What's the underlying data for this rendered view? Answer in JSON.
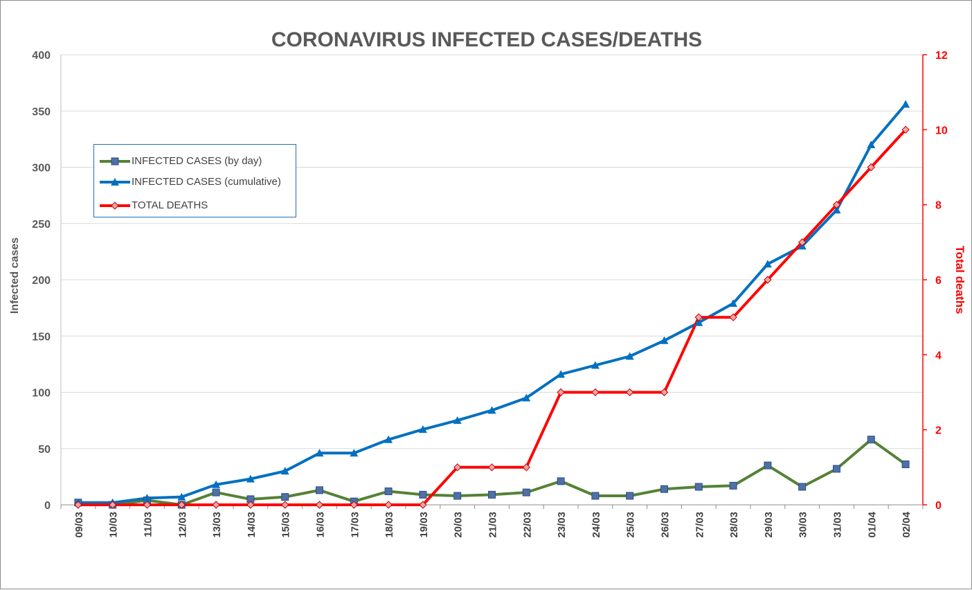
{
  "chart_data": {
    "type": "line",
    "title": "CORONAVIRUS INFECTED CASES/DEATHS",
    "ylabel": "Infected cases",
    "y2label": "Total deaths",
    "categories": [
      "09/03",
      "10/03",
      "11/03",
      "12/03",
      "13/03",
      "14/03",
      "15/03",
      "16/03",
      "17/03",
      "18/03",
      "19/03",
      "20/03",
      "21/03",
      "22/03",
      "23/03",
      "24/03",
      "25/03",
      "26/03",
      "27/03",
      "28/03",
      "29/03",
      "30/03",
      "31/03",
      "01/04",
      "02/04"
    ],
    "ylim": [
      0,
      400
    ],
    "yticks": [
      0,
      50,
      100,
      150,
      200,
      250,
      300,
      350,
      400
    ],
    "y2lim": [
      0,
      12
    ],
    "y2ticks": [
      0,
      2,
      4,
      6,
      8,
      10,
      12
    ],
    "grid": true,
    "legend_position": "top-left",
    "series": [
      {
        "name": "INFECTED CASES (by day)",
        "axis": "left",
        "color": "#548235",
        "marker": "square",
        "values": [
          2,
          0,
          4,
          0,
          11,
          5,
          7,
          13,
          3,
          12,
          9,
          8,
          9,
          11,
          21,
          8,
          8,
          14,
          16,
          17,
          35,
          16,
          32,
          58,
          36
        ]
      },
      {
        "name": "INFECTED CASES (cumulative)",
        "axis": "left",
        "color": "#0070c0",
        "marker": "triangle",
        "values": [
          2,
          2,
          6,
          7,
          18,
          23,
          30,
          46,
          46,
          58,
          67,
          75,
          84,
          95,
          116,
          124,
          132,
          146,
          162,
          179,
          214,
          230,
          262,
          320,
          356
        ]
      },
      {
        "name": "TOTAL DEATHS",
        "axis": "right",
        "color": "#ff0000",
        "marker": "diamond",
        "values": [
          0,
          0,
          0,
          0,
          0,
          0,
          0,
          0,
          0,
          0,
          0,
          1,
          1,
          1,
          3,
          3,
          3,
          3,
          5,
          5,
          6,
          7,
          8,
          9,
          10
        ]
      }
    ]
  }
}
